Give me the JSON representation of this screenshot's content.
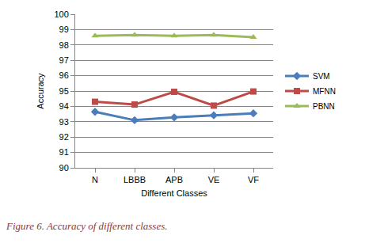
{
  "chart_data": {
    "type": "line",
    "caption": "Figure 6. Accuracy of different classes.",
    "x_label": "Different Classes",
    "y_label": "Accuracy",
    "categories": [
      "N",
      "LBBB",
      "APB",
      "VE",
      "VF"
    ],
    "series": [
      {
        "name": "SVM",
        "color": "#4a7ebb",
        "marker": "diamond",
        "values": [
          93.65,
          93.1,
          93.28,
          93.42,
          93.55
        ]
      },
      {
        "name": "MFNN",
        "color": "#be4b48",
        "marker": "square",
        "values": [
          94.3,
          94.12,
          94.95,
          94.05,
          94.97
        ]
      },
      {
        "name": "PBNN",
        "color": "#9bbb59",
        "marker": "triangle-up",
        "values": [
          98.6,
          98.65,
          98.6,
          98.65,
          98.5
        ]
      }
    ],
    "ylim": [
      90,
      100
    ],
    "yticks": [
      90,
      91,
      92,
      93,
      94,
      95,
      96,
      97,
      98,
      99,
      100
    ],
    "grid": true,
    "legend": "right"
  }
}
